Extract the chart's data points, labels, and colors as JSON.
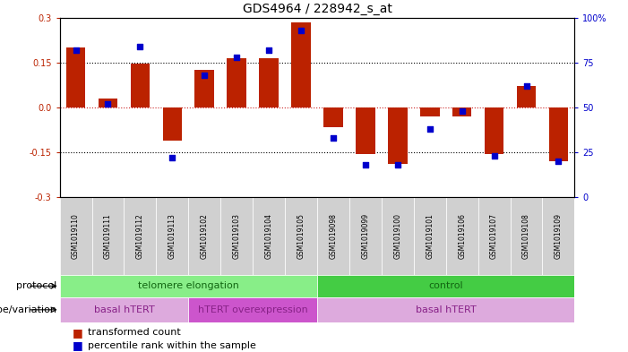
{
  "title": "GDS4964 / 228942_s_at",
  "samples": [
    "GSM1019110",
    "GSM1019111",
    "GSM1019112",
    "GSM1019113",
    "GSM1019102",
    "GSM1019103",
    "GSM1019104",
    "GSM1019105",
    "GSM1019098",
    "GSM1019099",
    "GSM1019100",
    "GSM1019101",
    "GSM1019106",
    "GSM1019107",
    "GSM1019108",
    "GSM1019109"
  ],
  "bar_values": [
    0.2,
    0.03,
    0.145,
    -0.11,
    0.125,
    0.165,
    0.165,
    0.285,
    -0.065,
    -0.155,
    -0.19,
    -0.03,
    -0.03,
    -0.155,
    0.07,
    -0.18
  ],
  "dot_values": [
    82,
    52,
    84,
    22,
    68,
    78,
    82,
    93,
    33,
    18,
    18,
    38,
    48,
    23,
    62,
    20
  ],
  "ylim_left": [
    -0.3,
    0.3
  ],
  "ylim_right": [
    0,
    100
  ],
  "yticks_left": [
    -0.3,
    -0.15,
    0.0,
    0.15,
    0.3
  ],
  "yticks_right": [
    0,
    25,
    50,
    75,
    100
  ],
  "ytick_labels_right": [
    "0",
    "25",
    "50",
    "75",
    "100%"
  ],
  "bar_color": "#bb2200",
  "dot_color": "#0000cc",
  "zero_line_color": "#cc2222",
  "grid_color": "#000000",
  "protocol_colors": [
    "#88ee88",
    "#44cc44"
  ],
  "protocol_labels": [
    "telomere elongation",
    "control"
  ],
  "genotype_colors": [
    "#ddaadd",
    "#cc55cc",
    "#ddaadd"
  ],
  "genotype_labels": [
    "basal hTERT",
    "hTERT overexpression",
    "basal hTERT"
  ],
  "protocol_row_label": "protocol",
  "genotype_row_label": "genotype/variation",
  "legend_items": [
    "transformed count",
    "percentile rank within the sample"
  ],
  "legend_colors": [
    "#bb2200",
    "#0000cc"
  ],
  "background_color": "#ffffff",
  "title_fontsize": 10,
  "tick_fontsize": 7,
  "label_fontsize": 8,
  "annotation_fontsize": 8,
  "sample_fontsize": 5.5
}
